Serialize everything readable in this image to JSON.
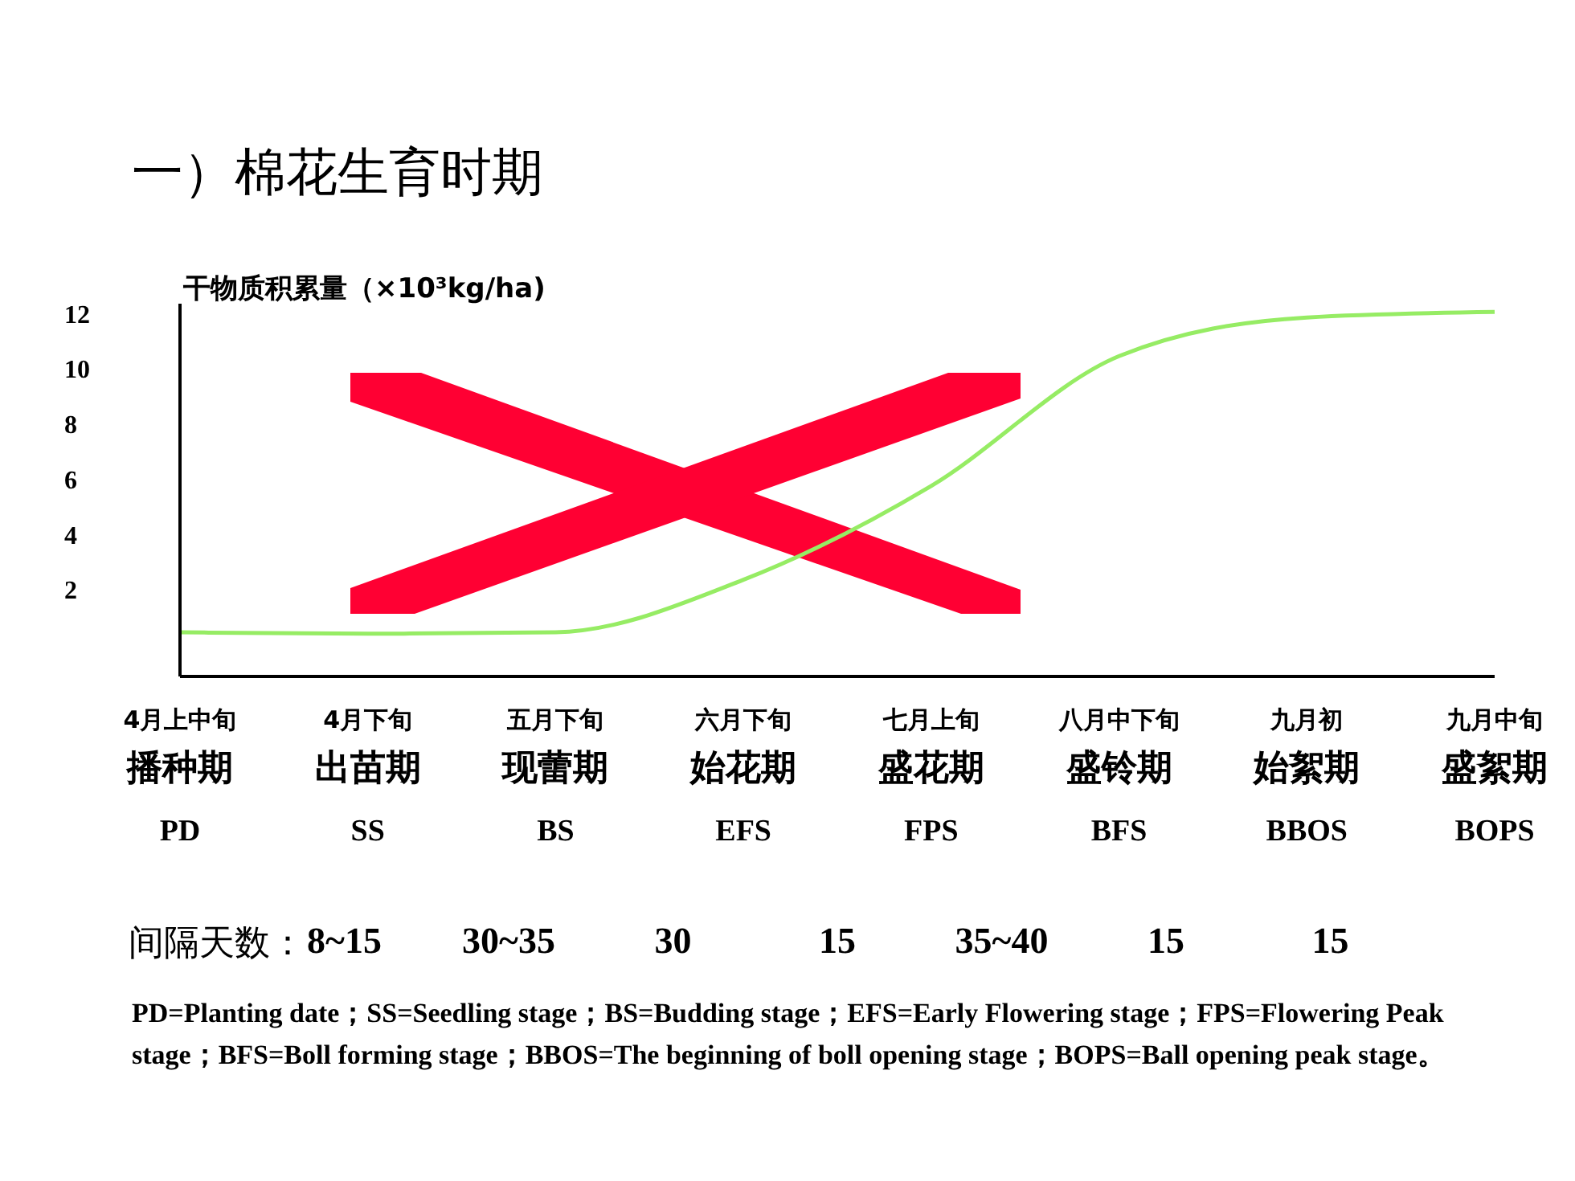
{
  "chart_data": {
    "type": "line",
    "title": "一）棉花生育时期",
    "ylabel": "干物质积累量（×10³kg/ha)",
    "categories": [
      "4月上中旬播种期\nPD",
      "4月下旬出苗期\nSS",
      "五月下旬现蕾期\nBS",
      "六月下旬始花期\nEFS",
      "七月上旬盛花期\nFPS",
      "八月中下旬盛铃期\nBFS",
      "九月初始絮期\nBBOS",
      "九月中旬盛絮期\nBOPS"
    ],
    "series": [
      {
        "color": "#96ec64",
        "values": [
          0.5,
          0.45,
          0.5,
          2.4,
          5.8,
          10.5,
          11.9,
          12.1
        ]
      }
    ],
    "ylim": [
      -1.1,
      12.4
    ],
    "yticks": [
      2,
      4,
      6,
      8,
      10,
      12
    ],
    "annotations": [
      "间隔天数：",
      "8~15",
      "30~35",
      "30",
      "15",
      "35~40",
      "15",
      "15",
      "PD=Planting date；SS=Seedling stage；BS=Budding stage；EFS=Early Flowering stage；FPS=Flowering Peak stage；BFS=Boll forming stage；BBOS=The beginning of boll opening stage；BOPS=Ball opening peak stage。"
    ]
  }
}
